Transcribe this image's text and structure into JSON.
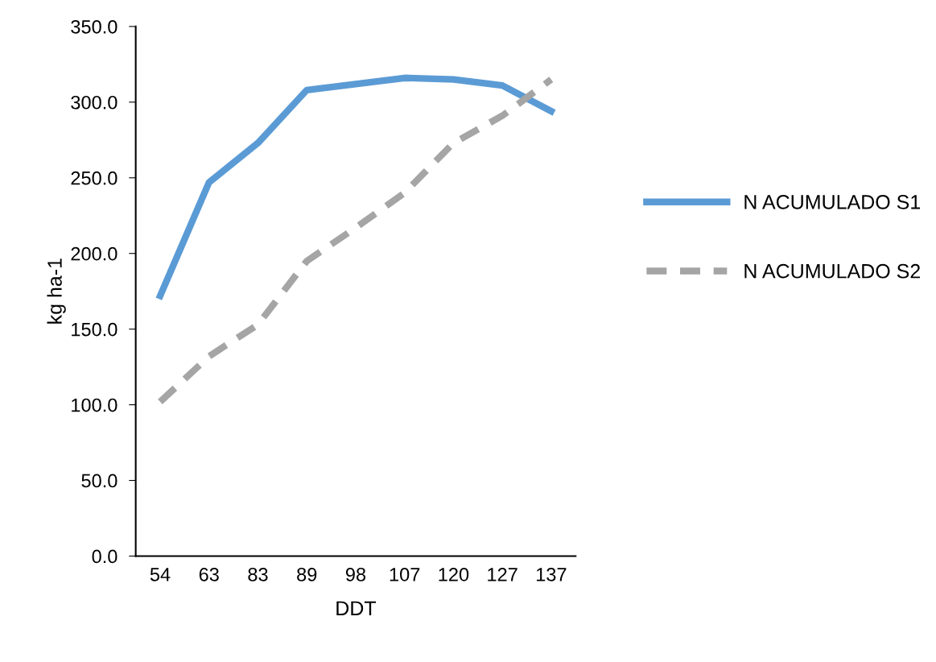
{
  "chart_data": {
    "type": "line",
    "xlabel": "DDT",
    "ylabel": "kg ha-1",
    "categories": [
      "54",
      "63",
      "83",
      "89",
      "98",
      "107",
      "120",
      "127",
      "137"
    ],
    "series": [
      {
        "name": "N ACUMULADO S1",
        "color": "#5b9bd5",
        "line_style": "solid",
        "values": [
          172,
          247,
          273,
          308,
          312,
          316,
          315,
          311,
          294
        ]
      },
      {
        "name": "N ACUMULADO S2",
        "color": "#a5a5a5",
        "line_style": "dashed",
        "values": [
          102,
          132,
          153,
          195,
          217,
          240,
          273,
          291,
          315
        ]
      }
    ],
    "ylim": [
      0,
      350
    ],
    "yticks": [
      {
        "value": 0,
        "label": "0.0"
      },
      {
        "value": 50,
        "label": "50.0"
      },
      {
        "value": 100,
        "label": "100.0"
      },
      {
        "value": 150,
        "label": "150.0"
      },
      {
        "value": 200,
        "label": "200.0"
      },
      {
        "value": 250,
        "label": "250.0"
      },
      {
        "value": 300,
        "label": "300.0"
      },
      {
        "value": 350,
        "label": "350.0"
      }
    ],
    "grid": false,
    "legend": "right",
    "marker": "none"
  }
}
